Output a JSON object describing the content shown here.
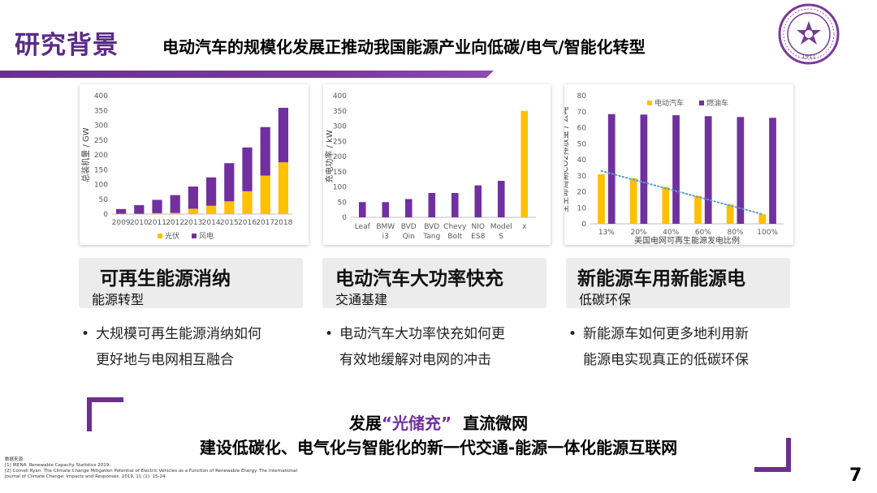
{
  "header": {
    "title": "研究背景",
    "subtitle": "电动汽车的规模化发展正推动我国能源产业向低碳/电气/智能化转型"
  },
  "charts": {
    "c1": {
      "type": "bar",
      "stacked": true,
      "categories": [
        "2009",
        "2010",
        "2011",
        "2012",
        "2013",
        "2014",
        "2015",
        "2016",
        "2017",
        "2018"
      ],
      "series": [
        {
          "name": "光伏",
          "color": "#ffc000",
          "values": [
            1,
            1,
            3,
            4,
            18,
            28,
            43,
            77,
            130,
            175
          ]
        },
        {
          "name": "风电",
          "color": "#7030a0",
          "values": [
            16,
            29,
            45,
            60,
            75,
            96,
            129,
            148,
            164,
            184
          ]
        }
      ],
      "ylim": [
        0,
        400
      ],
      "yticks": [
        "0",
        "50",
        "100",
        "150",
        "200",
        "250",
        "300",
        "350",
        "400"
      ],
      "ylabel": "总装机量 / GW",
      "legend_position": "bottom",
      "grid": false
    },
    "c2": {
      "type": "bar",
      "categories": [
        [
          "Leaf"
        ],
        [
          "BMW",
          "i3"
        ],
        [
          "BVD",
          "Qin"
        ],
        [
          "BVD",
          "Tang"
        ],
        [
          "Chevy",
          "Bolt"
        ],
        [
          "NIO",
          "ES8"
        ],
        [
          "Model",
          "S"
        ],
        [
          "x"
        ]
      ],
      "values": [
        50,
        50,
        60,
        80,
        80,
        105,
        120,
        350
      ],
      "colors": [
        "#7030a0",
        "#7030a0",
        "#7030a0",
        "#7030a0",
        "#7030a0",
        "#7030a0",
        "#7030a0",
        "#ffc000"
      ],
      "ylim": [
        0,
        400
      ],
      "yticks": [
        "0",
        "50",
        "100",
        "150",
        "200",
        "250",
        "300",
        "350",
        "400"
      ],
      "ylabel": "充电功率 / kW",
      "grid": false
    },
    "c3": {
      "type": "bar",
      "categories": [
        "13%",
        "20%",
        "40%",
        "60%",
        "80%",
        "100%"
      ],
      "series": [
        {
          "name": "电动汽车",
          "color": "#ffc000",
          "values": [
            31,
            28.5,
            23,
            17.5,
            12,
            6
          ]
        },
        {
          "name": "燃油车",
          "color": "#7030a0",
          "values": [
            68.5,
            68.2,
            67.8,
            67.2,
            66.7,
            66.2
          ]
        }
      ],
      "trendline": {
        "series": "电动汽车",
        "style": "dotted",
        "color": "#5b9bd5",
        "from": 33,
        "to": 6
      },
      "ylim": [
        0,
        80
      ],
      "yticks": [
        "0",
        "10",
        "20",
        "30",
        "40",
        "50",
        "60",
        "70",
        "80"
      ],
      "ylabel": "全生命周期CO2排放量 / 公吨",
      "xlabel": "美国电网可再生能源发电比例",
      "legend_position": "top",
      "grid": false
    }
  },
  "topics": [
    {
      "title": "可再生能源消纳",
      "sub": "能源转型",
      "bullet": [
        "大规模可再生能源消纳如何",
        "更好地与电网相互融合"
      ]
    },
    {
      "title": "电动汽车大功率快充",
      "sub": "交通基建",
      "bullet": [
        "电动汽车大功率快充如何更",
        "有效地缓解对电网的冲击"
      ]
    },
    {
      "title": "新能源车用新能源电",
      "sub": "低碳环保",
      "bullet": [
        "新能源车如何更多地利用新",
        "能源电实现真正的低碳环保"
      ]
    }
  ],
  "bullet_char": "•",
  "slogan": {
    "line1_pre": "发展",
    "line1_highlight": "“光储充”",
    "line1_post": "直流微网",
    "line2": "建设低碳化、电气化与智能化的新一代交通-能源一体化能源互联网"
  },
  "references": {
    "heading": "数据来源:",
    "items": [
      "[1] IRENA. Renewable Capacity Statistics 2019.",
      "[2] Cornell Ryan. The Climate Change Mitigation Potential of Electric Vehicles as a Function of Renewable Energy. The International",
      "Journal of Climate Change: Impacts and Responses. 2019, 11 (1): 15-24."
    ]
  },
  "logo": {
    "year": "1911"
  },
  "page_number": "7",
  "colors": {
    "accent": "#6c2f8f",
    "purple_bar": "#7030a0",
    "yellow_bar": "#ffc000"
  }
}
